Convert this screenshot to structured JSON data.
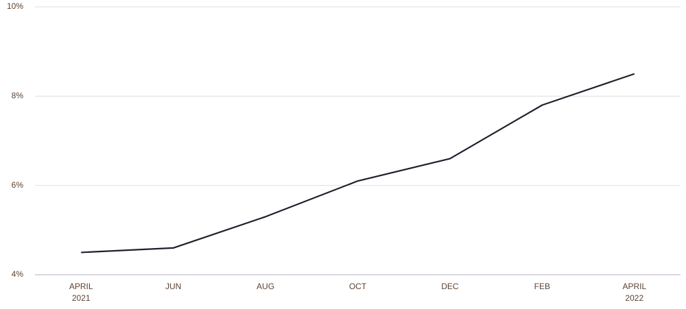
{
  "chart_data": {
    "type": "line",
    "categories": [
      "APRIL 2021",
      "JUN",
      "AUG",
      "OCT",
      "DEC",
      "FEB",
      "APRIL 2022"
    ],
    "series": [
      {
        "color": "#1b202b",
        "values": [
          4.5,
          4.6,
          5.3,
          6.1,
          6.6,
          7.8,
          8.5
        ]
      }
    ],
    "ylim": [
      4,
      10
    ],
    "yticks": [
      {
        "value": 4,
        "label": "4%"
      },
      {
        "value": 6,
        "label": "6%"
      },
      {
        "value": 8,
        "label": "8%"
      },
      {
        "value": 10,
        "label": "10%"
      }
    ],
    "grid": true
  }
}
